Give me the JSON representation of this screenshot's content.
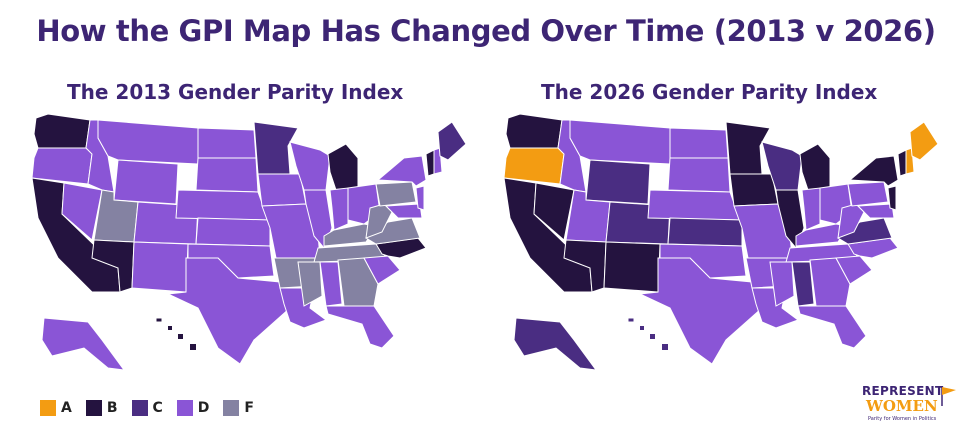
{
  "title": "How the GPI Map Has Changed Over Time (2013 v 2026)",
  "maps": [
    {
      "subtitle": "The 2013 Gender Parity Index",
      "grades": {
        "WA": "B",
        "OR": "D",
        "CA": "B",
        "NV": "D",
        "ID": "D",
        "MT": "D",
        "WY": "D",
        "UT": "F",
        "AZ": "B",
        "CO": "D",
        "NM": "D",
        "ND": "D",
        "SD": "D",
        "NE": "D",
        "KS": "D",
        "OK": "D",
        "TX": "D",
        "MN": "C",
        "IA": "D",
        "MO": "D",
        "AR": "F",
        "LA": "D",
        "WI": "D",
        "IL": "D",
        "MI": "B",
        "IN": "D",
        "OH": "D",
        "KY": "F",
        "TN": "F",
        "MS": "F",
        "AL": "D",
        "GA": "F",
        "FL": "D",
        "SC": "D",
        "NC": "B",
        "VA": "F",
        "WV": "F",
        "PA": "F",
        "NY": "D",
        "VT": "B",
        "NH": "D",
        "ME": "C",
        "MD": "D",
        "NJ": "D",
        "AK": "D",
        "HI": "B"
      }
    },
    {
      "subtitle": "The 2026 Gender Parity Index",
      "grades": {
        "WA": "B",
        "OR": "A",
        "CA": "B",
        "NV": "B",
        "ID": "D",
        "MT": "D",
        "WY": "C",
        "UT": "D",
        "AZ": "B",
        "CO": "C",
        "NM": "B",
        "ND": "D",
        "SD": "D",
        "NE": "D",
        "KS": "C",
        "OK": "D",
        "TX": "D",
        "MN": "B",
        "IA": "B",
        "MO": "D",
        "AR": "D",
        "LA": "D",
        "WI": "C",
        "IL": "B",
        "MI": "B",
        "IN": "D",
        "OH": "D",
        "KY": "D",
        "TN": "D",
        "MS": "D",
        "AL": "C",
        "GA": "D",
        "FL": "D",
        "SC": "D",
        "NC": "D",
        "VA": "C",
        "WV": "D",
        "PA": "D",
        "NY": "B",
        "VT": "B",
        "NH": "A",
        "ME": "A",
        "MD": "D",
        "NJ": "B",
        "AK": "C",
        "HI": "C"
      }
    }
  ],
  "grade_colors": {
    "A": "#f39c12",
    "B": "#24133f",
    "C": "#4a2d82",
    "D": "#8a55d6",
    "F": "#8482a2"
  },
  "legend": [
    {
      "grade": "A",
      "label": "A"
    },
    {
      "grade": "B",
      "label": "B"
    },
    {
      "grade": "C",
      "label": "C"
    },
    {
      "grade": "D",
      "label": "D"
    },
    {
      "grade": "F",
      "label": "F"
    }
  ],
  "brand": {
    "line1": "REPRESENT",
    "line2": "WOMEN",
    "tagline": "Parity for Women in Politics"
  }
}
